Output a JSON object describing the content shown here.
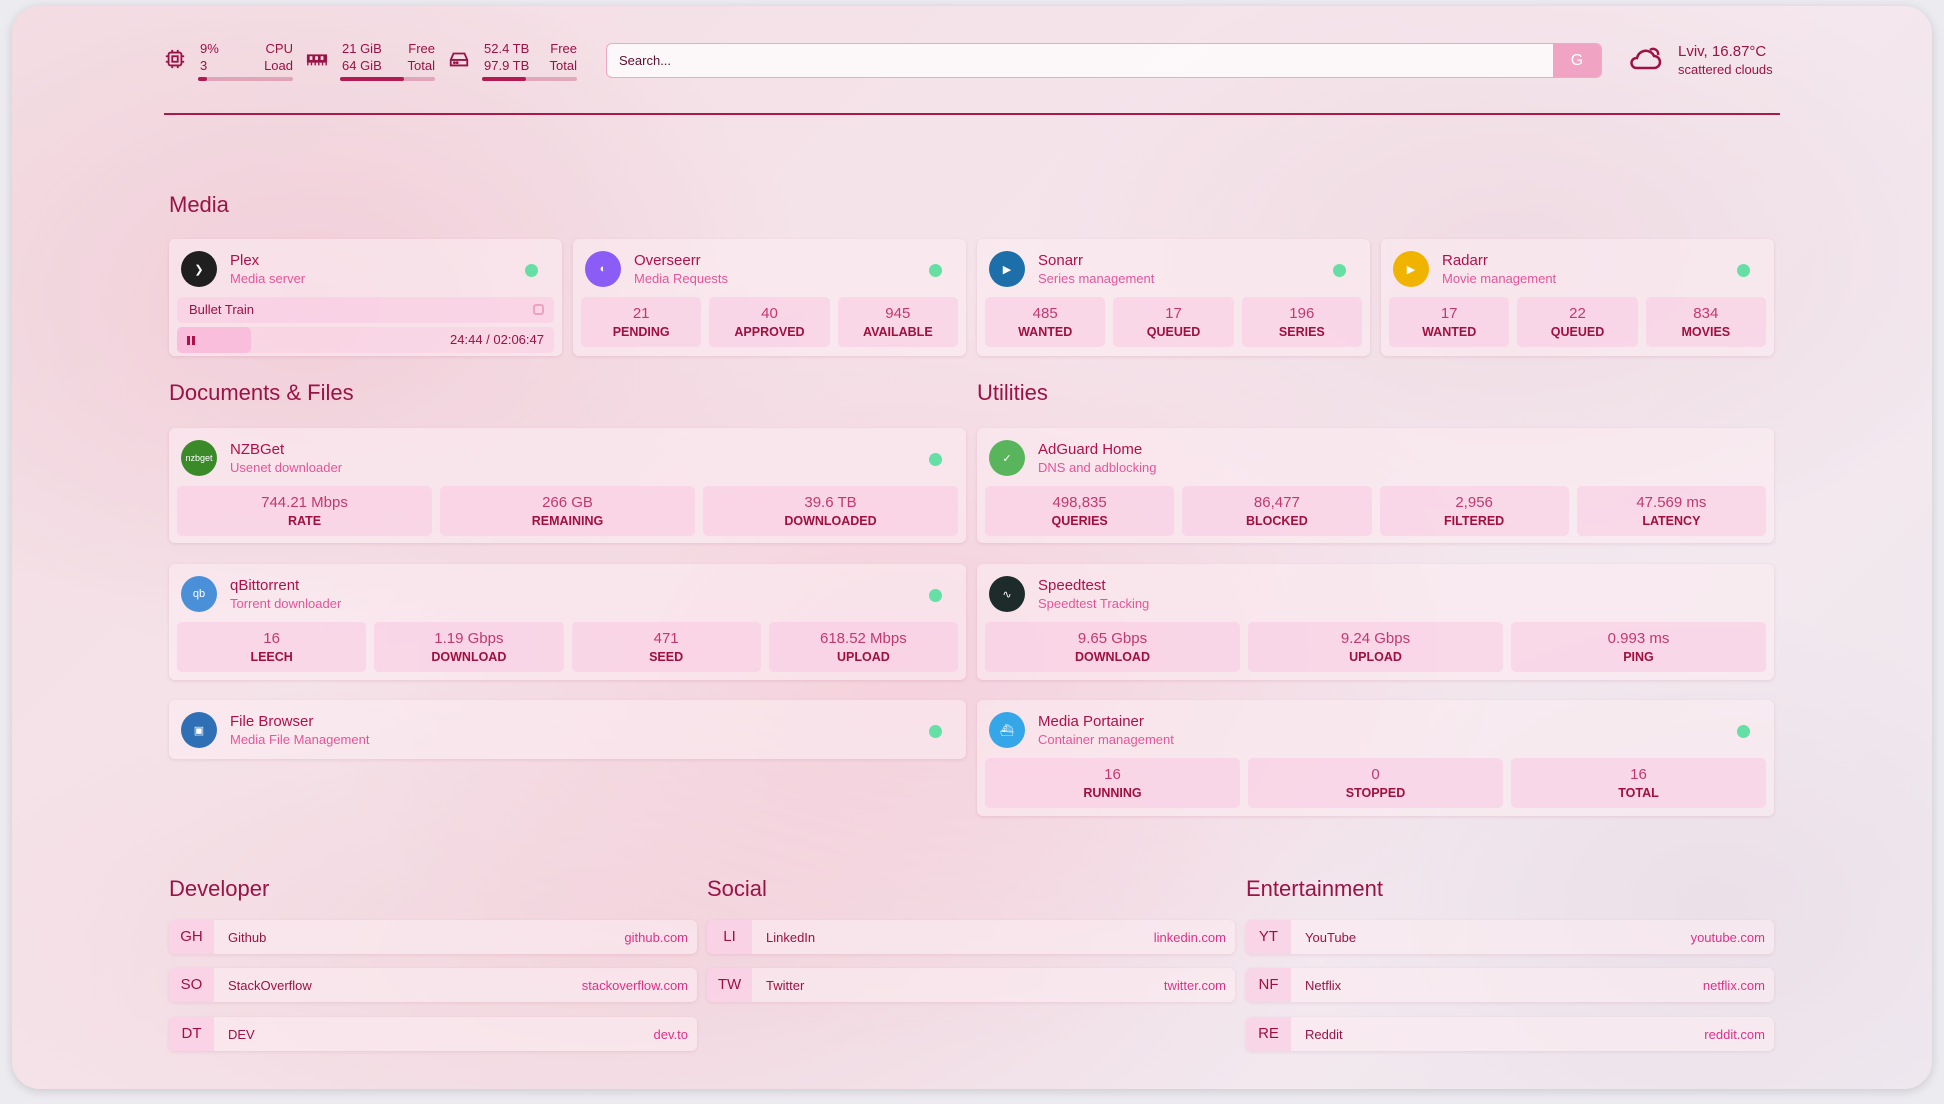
{
  "header": {
    "cpu": {
      "value": "9%",
      "label": "Load",
      "sub": "3",
      "title": "CPU",
      "percent": 9,
      "icon": "cpu-icon"
    },
    "memory": {
      "free": "21 GiB",
      "total": "64 GiB",
      "free_label": "Free",
      "total_label": "Total",
      "percent": 67,
      "icon": "memory-icon"
    },
    "disk": {
      "free": "52.4 TB",
      "total": "97.9 TB",
      "free_label": "Free",
      "total_label": "Total",
      "percent": 46,
      "icon": "hard-drive-icon"
    },
    "search": {
      "placeholder": "Search...",
      "engine_button": "G"
    },
    "weather": {
      "location_temp": "Lviv, 16.87°C",
      "condition": "scattered clouds",
      "icon": "cloud-sun-icon"
    }
  },
  "sections": {
    "media": "Media",
    "documents": "Documents & Files",
    "utilities": "Utilities",
    "developer": "Developer",
    "social": "Social",
    "entertainment": "Entertainment"
  },
  "services": [
    {
      "name": "Plex",
      "desc": "Media server",
      "icon": "plex-icon",
      "color": "#1f1f1f",
      "glyph": "❯",
      "status": "#66dfa4",
      "now_playing": {
        "title": "Bullet Train",
        "time": "24:44 / 02:06:47",
        "progress": 19.5
      }
    },
    {
      "name": "Overseerr",
      "desc": "Media Requests",
      "icon": "overseerr-icon",
      "color": "#8b5cf6",
      "glyph": "◐",
      "status": "#66dfa4",
      "stats": [
        {
          "v": "21",
          "l": "PENDING"
        },
        {
          "v": "40",
          "l": "APPROVED"
        },
        {
          "v": "945",
          "l": "AVAILABLE"
        }
      ]
    },
    {
      "name": "Sonarr",
      "desc": "Series management",
      "icon": "sonarr-icon",
      "color": "#1c6fa8",
      "glyph": "▶",
      "status": "#66dfa4",
      "stats": [
        {
          "v": "485",
          "l": "WANTED"
        },
        {
          "v": "17",
          "l": "QUEUED"
        },
        {
          "v": "196",
          "l": "SERIES"
        }
      ]
    },
    {
      "name": "Radarr",
      "desc": "Movie management",
      "icon": "radarr-icon",
      "color": "#f0b400",
      "glyph": "▶",
      "status": "#66dfa4",
      "stats": [
        {
          "v": "17",
          "l": "WANTED"
        },
        {
          "v": "22",
          "l": "QUEUED"
        },
        {
          "v": "834",
          "l": "MOVIES"
        }
      ]
    },
    {
      "name": "NZBGet",
      "desc": "Usenet downloader",
      "icon": "nzbget-icon",
      "color": "#3b8a2a",
      "glyph": "nzbget",
      "status": "#66dfa4",
      "stats": [
        {
          "v": "744.21 Mbps",
          "l": "RATE"
        },
        {
          "v": "266 GB",
          "l": "REMAINING"
        },
        {
          "v": "39.6 TB",
          "l": "DOWNLOADED"
        }
      ]
    },
    {
      "name": "qBittorrent",
      "desc": "Torrent downloader",
      "icon": "qbittorrent-icon",
      "color": "#4a90d9",
      "glyph": "qb",
      "status": "#66dfa4",
      "stats": [
        {
          "v": "16",
          "l": "LEECH"
        },
        {
          "v": "1.19 Gbps",
          "l": "DOWNLOAD"
        },
        {
          "v": "471",
          "l": "SEED"
        },
        {
          "v": "618.52 Mbps",
          "l": "UPLOAD"
        }
      ]
    },
    {
      "name": "File Browser",
      "desc": "Media File Management",
      "icon": "file-browser-icon",
      "color": "#2f6fb5",
      "glyph": "▣",
      "status": "#66dfa4"
    },
    {
      "name": "AdGuard Home",
      "desc": "DNS and adblocking",
      "icon": "adguard-shield-icon",
      "color": "#58b55c",
      "glyph": "✓",
      "stats": [
        {
          "v": "498,835",
          "l": "QUERIES"
        },
        {
          "v": "86,477",
          "l": "BLOCKED"
        },
        {
          "v": "2,956",
          "l": "FILTERED"
        },
        {
          "v": "47.569 ms",
          "l": "LATENCY"
        }
      ]
    },
    {
      "name": "Speedtest",
      "desc": "Speedtest Tracking",
      "icon": "speedtest-icon",
      "color": "#1d2b2a",
      "glyph": "∿",
      "stats": [
        {
          "v": "9.65 Gbps",
          "l": "DOWNLOAD"
        },
        {
          "v": "9.24 Gbps",
          "l": "UPLOAD"
        },
        {
          "v": "0.993 ms",
          "l": "PING"
        }
      ]
    },
    {
      "name": "Media Portainer",
      "desc": "Container management",
      "icon": "portainer-icon",
      "color": "#35a6e8",
      "glyph": "⛴",
      "status": "#66dfa4",
      "stats": [
        {
          "v": "16",
          "l": "RUNNING"
        },
        {
          "v": "0",
          "l": "STOPPED"
        },
        {
          "v": "16",
          "l": "TOTAL"
        }
      ]
    }
  ],
  "bookmarks": {
    "developer": [
      {
        "ab": "GH",
        "name": "Github",
        "url": "github.com"
      },
      {
        "ab": "SO",
        "name": "StackOverflow",
        "url": "stackoverflow.com"
      },
      {
        "ab": "DT",
        "name": "DEV",
        "url": "dev.to"
      }
    ],
    "social": [
      {
        "ab": "LI",
        "name": "LinkedIn",
        "url": "linkedin.com"
      },
      {
        "ab": "TW",
        "name": "Twitter",
        "url": "twitter.com"
      }
    ],
    "entertainment": [
      {
        "ab": "YT",
        "name": "YouTube",
        "url": "youtube.com"
      },
      {
        "ab": "NF",
        "name": "Netflix",
        "url": "netflix.com"
      },
      {
        "ab": "RE",
        "name": "Reddit",
        "url": "reddit.com"
      }
    ]
  }
}
